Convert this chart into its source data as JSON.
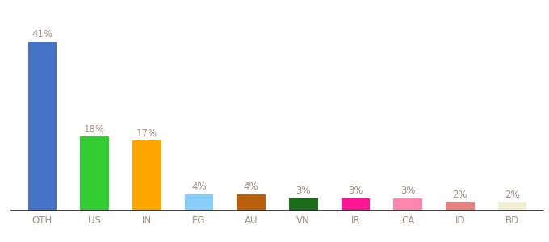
{
  "categories": [
    "OTH",
    "US",
    "IN",
    "EG",
    "AU",
    "VN",
    "IR",
    "CA",
    "ID",
    "BD"
  ],
  "values": [
    41,
    18,
    17,
    4,
    4,
    3,
    3,
    3,
    2,
    2
  ],
  "bar_colors": [
    "#4472C4",
    "#33CC33",
    "#FFA500",
    "#87CEFA",
    "#B8600A",
    "#1A6B1A",
    "#FF1493",
    "#FF85B0",
    "#E88080",
    "#F0EDD5"
  ],
  "label_color": "#A09080",
  "tick_color": "#A09080",
  "background_color": "#ffffff",
  "ylim": [
    0,
    47
  ],
  "label_fontsize": 8.5,
  "tick_fontsize": 8.5,
  "bar_width": 0.55
}
